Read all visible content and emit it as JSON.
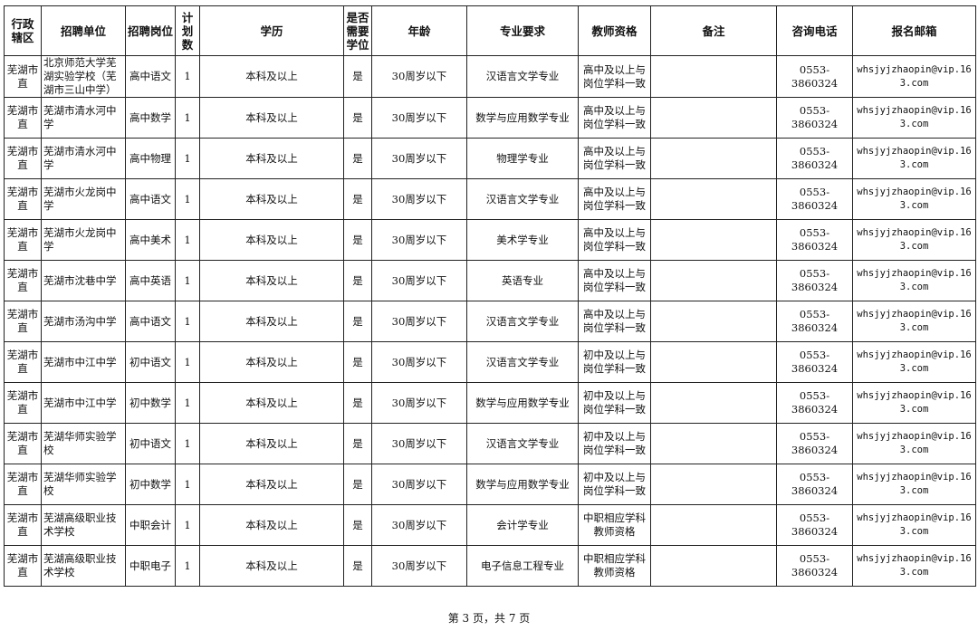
{
  "headers": [
    "行政辖区",
    "招聘单位",
    "招聘岗位",
    "计划数",
    "学历",
    "是否需要学位",
    "年龄",
    "专业要求",
    "教师资格",
    "备注",
    "咨询电话",
    "报名邮箱"
  ],
  "rows": [
    [
      "芜湖市直",
      "北京师范大学芜湖实验学校（芜湖市三山中学）",
      "高中语文",
      "1",
      "本科及以上",
      "是",
      "30周岁以下",
      "汉语言文学专业",
      "高中及以上与岗位学科一致",
      "",
      "0553-3860324",
      "whsjyjzhaopin@vip.163.com"
    ],
    [
      "芜湖市直",
      "芜湖市清水河中学",
      "高中数学",
      "1",
      "本科及以上",
      "是",
      "30周岁以下",
      "数学与应用数学专业",
      "高中及以上与岗位学科一致",
      "",
      "0553-3860324",
      "whsjyjzhaopin@vip.163.com"
    ],
    [
      "芜湖市直",
      "芜湖市清水河中学",
      "高中物理",
      "1",
      "本科及以上",
      "是",
      "30周岁以下",
      "物理学专业",
      "高中及以上与岗位学科一致",
      "",
      "0553-3860324",
      "whsjyjzhaopin@vip.163.com"
    ],
    [
      "芜湖市直",
      "芜湖市火龙岗中学",
      "高中语文",
      "1",
      "本科及以上",
      "是",
      "30周岁以下",
      "汉语言文学专业",
      "高中及以上与岗位学科一致",
      "",
      "0553-3860324",
      "whsjyjzhaopin@vip.163.com"
    ],
    [
      "芜湖市直",
      "芜湖市火龙岗中学",
      "高中美术",
      "1",
      "本科及以上",
      "是",
      "30周岁以下",
      "美术学专业",
      "高中及以上与岗位学科一致",
      "",
      "0553-3860324",
      "whsjyjzhaopin@vip.163.com"
    ],
    [
      "芜湖市直",
      "芜湖市沈巷中学",
      "高中英语",
      "1",
      "本科及以上",
      "是",
      "30周岁以下",
      "英语专业",
      "高中及以上与岗位学科一致",
      "",
      "0553-3860324",
      "whsjyjzhaopin@vip.163.com"
    ],
    [
      "芜湖市直",
      "芜湖市汤沟中学",
      "高中语文",
      "1",
      "本科及以上",
      "是",
      "30周岁以下",
      "汉语言文学专业",
      "高中及以上与岗位学科一致",
      "",
      "0553-3860324",
      "whsjyjzhaopin@vip.163.com"
    ],
    [
      "芜湖市直",
      "芜湖市中江中学",
      "初中语文",
      "1",
      "本科及以上",
      "是",
      "30周岁以下",
      "汉语言文学专业",
      "初中及以上与岗位学科一致",
      "",
      "0553-3860324",
      "whsjyjzhaopin@vip.163.com"
    ],
    [
      "芜湖市直",
      "芜湖市中江中学",
      "初中数学",
      "1",
      "本科及以上",
      "是",
      "30周岁以下",
      "数学与应用数学专业",
      "初中及以上与岗位学科一致",
      "",
      "0553-3860324",
      "whsjyjzhaopin@vip.163.com"
    ],
    [
      "芜湖市直",
      "芜湖华师实验学校",
      "初中语文",
      "1",
      "本科及以上",
      "是",
      "30周岁以下",
      "汉语言文学专业",
      "初中及以上与岗位学科一致",
      "",
      "0553-3860324",
      "whsjyjzhaopin@vip.163.com"
    ],
    [
      "芜湖市直",
      "芜湖华师实验学校",
      "初中数学",
      "1",
      "本科及以上",
      "是",
      "30周岁以下",
      "数学与应用数学专业",
      "初中及以上与岗位学科一致",
      "",
      "0553-3860324",
      "whsjyjzhaopin@vip.163.com"
    ],
    [
      "芜湖市直",
      "芜湖高级职业技术学校",
      "中职会计",
      "1",
      "本科及以上",
      "是",
      "30周岁以下",
      "会计学专业",
      "中职相应学科教师资格",
      "",
      "0553-3860324",
      "whsjyjzhaopin@vip.163.com"
    ],
    [
      "芜湖市直",
      "芜湖高级职业技术学校",
      "中职电子",
      "1",
      "本科及以上",
      "是",
      "30周岁以下",
      "电子信息工程专业",
      "中职相应学科教师资格",
      "",
      "0553-3860324",
      "whsjyjzhaopin@vip.163.com"
    ]
  ],
  "footer": "第 3 页，共 7 页"
}
